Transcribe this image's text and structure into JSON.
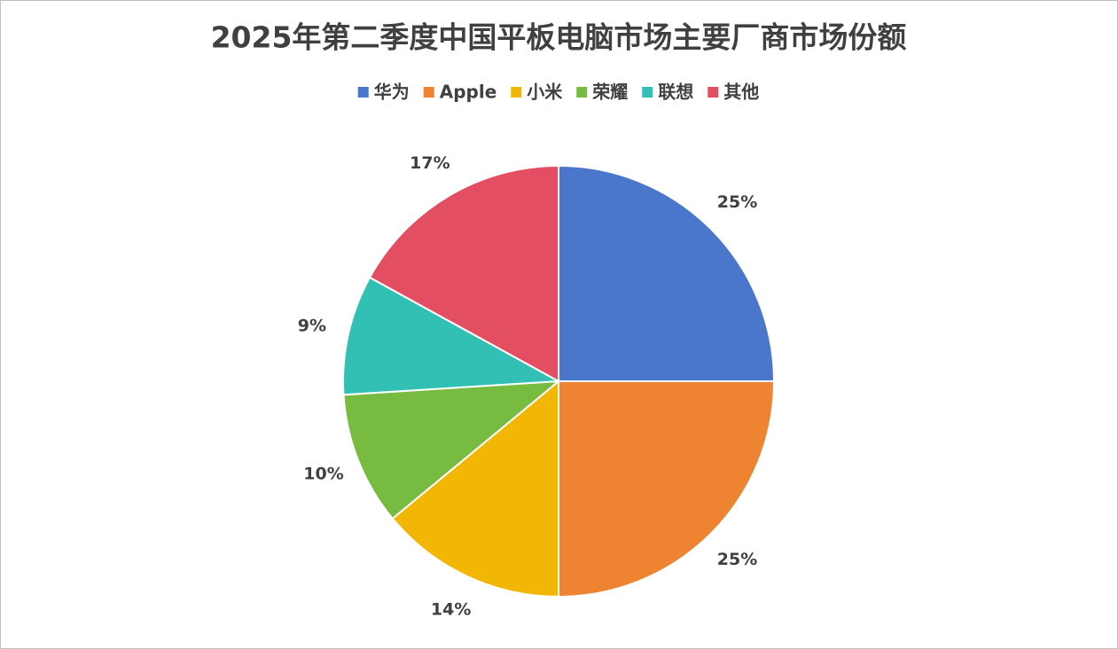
{
  "chart_data": {
    "type": "pie",
    "title": "2025年第二季度中国平板电脑市场主要厂商市场份额",
    "categories": [
      "华为",
      "Apple",
      "小米",
      "荣耀",
      "联想",
      "其他"
    ],
    "values": [
      25,
      25,
      14,
      10,
      9,
      17
    ],
    "value_labels": [
      "25%",
      "25%",
      "14%",
      "10%",
      "9%",
      "17%"
    ],
    "colors": [
      "#4a76cc",
      "#ee8332",
      "#f2b705",
      "#77bb41",
      "#32c0b4",
      "#e34e62"
    ],
    "legend": "top"
  }
}
